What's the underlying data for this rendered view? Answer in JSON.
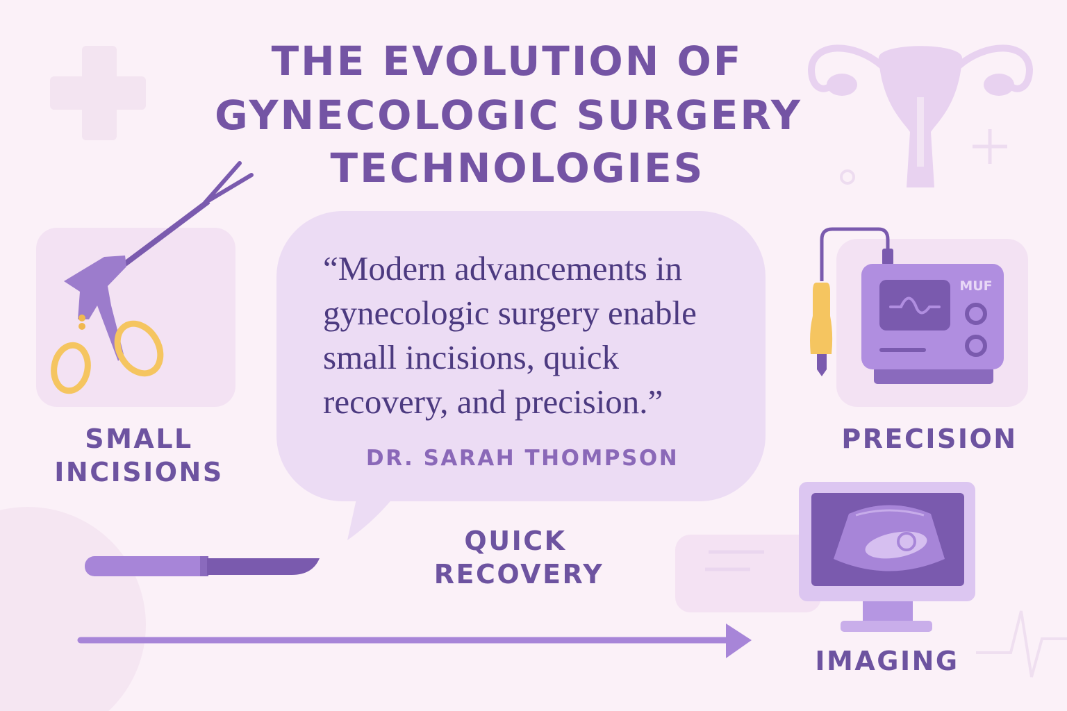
{
  "title": {
    "lines": [
      "THE EVOLUTION OF",
      "GYNECOLOGIC SURGERY",
      "TECHNOLOGIES"
    ]
  },
  "quote": {
    "lines": [
      "“Modern advancements in",
      "gynecologic surgery enable",
      "small incisions, quick",
      "recovery, and precision.”"
    ],
    "author": "DR. SARAH THOMPSON"
  },
  "labels": {
    "small_incisions": [
      "SMALL",
      "INCISIONS"
    ],
    "precision": "PRECISION",
    "quick_recovery": [
      "QUICK",
      "RECOVERY"
    ],
    "imaging": "IMAGING"
  },
  "device": {
    "brand": "MUF"
  },
  "icons": [
    "medical-cross-icon",
    "uterus-icon",
    "laparoscopic-grasper-icon",
    "electrosurgical-unit-icon",
    "scalpel-icon",
    "ultrasound-monitor-icon",
    "timeline-arrow-icon",
    "heartbeat-line-icon"
  ],
  "colors": {
    "background": "#fbf1f8",
    "title": "#7454a4",
    "bubble": "#ecdcf4",
    "quote_text": "#4c3a80",
    "accent": "#9a78cc",
    "dark_purple": "#7452a8",
    "gold": "#f5c560"
  }
}
